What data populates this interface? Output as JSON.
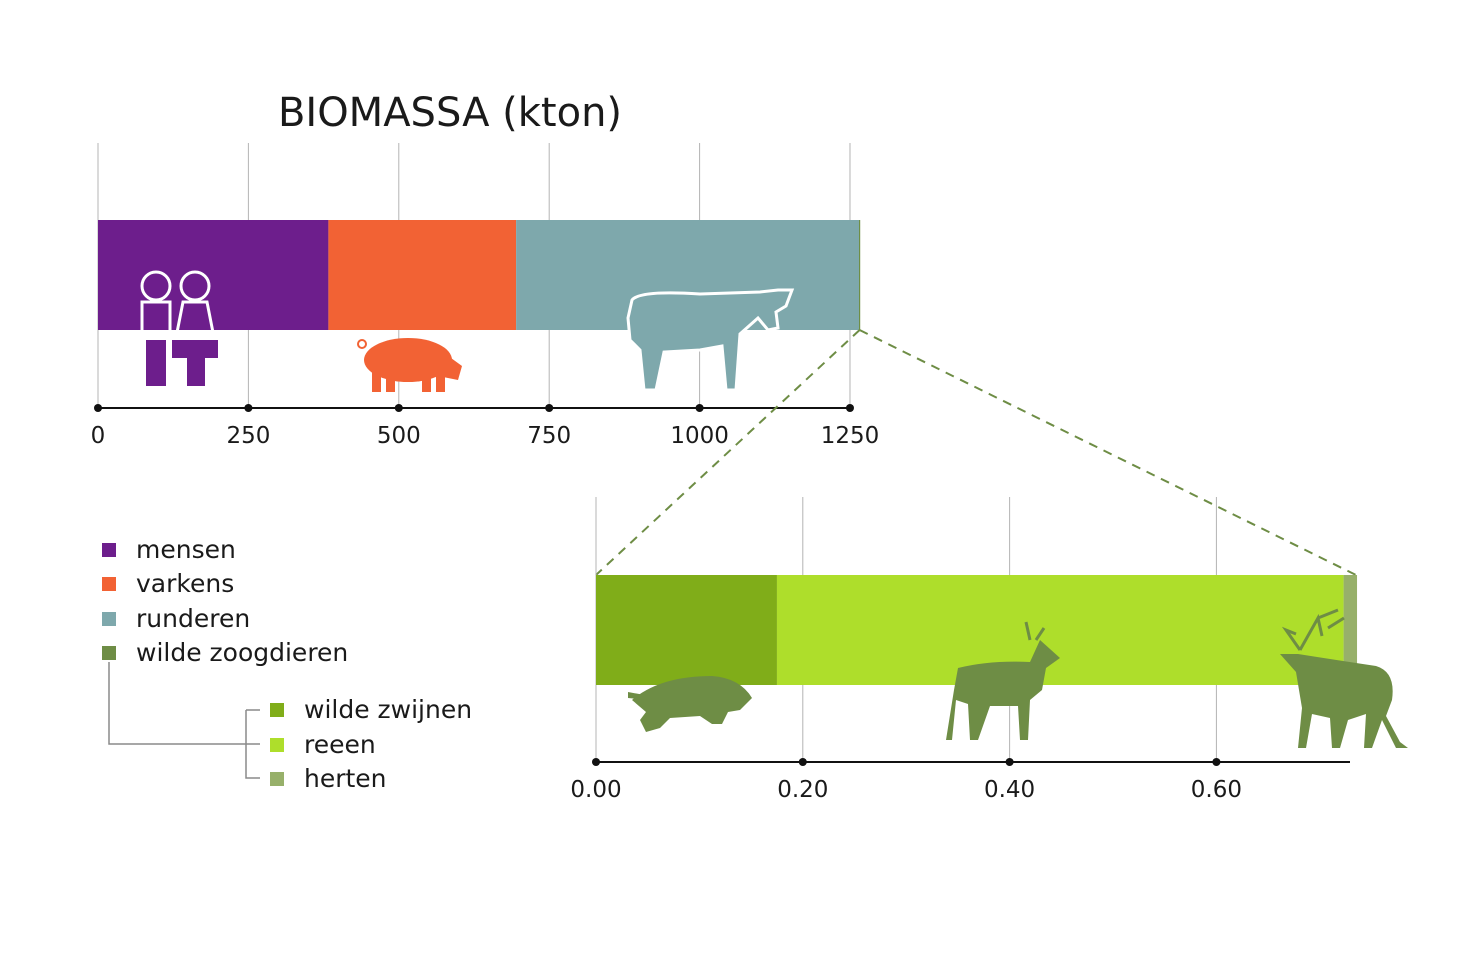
{
  "chart_data": [
    {
      "type": "bar",
      "orientation": "horizontal-stacked",
      "title": "BIOMASSA (kton)",
      "xlim": [
        0,
        1260
      ],
      "tick_labels": [
        "0",
        "250",
        "500",
        "750",
        "1000",
        "1250"
      ],
      "tick_values": [
        0,
        250,
        500,
        750,
        1000,
        1250
      ],
      "grid": true,
      "series": [
        {
          "name": "mensen",
          "value": 383,
          "color": "#6d1e8c",
          "icon": "people-icon"
        },
        {
          "name": "varkens",
          "value": 312,
          "color": "#f26234",
          "icon": "pig-icon"
        },
        {
          "name": "runderen",
          "value": 570,
          "color": "#7ea8ac",
          "icon": "cow-icon"
        },
        {
          "name": "wilde zoogdieren",
          "value": 2,
          "color": "#6e8d45"
        }
      ]
    },
    {
      "type": "bar",
      "orientation": "horizontal-stacked",
      "title": "",
      "xlim": [
        0,
        0.735
      ],
      "tick_labels": [
        "0.00",
        "0.20",
        "0.40",
        "0.60"
      ],
      "tick_values": [
        0.0,
        0.2,
        0.4,
        0.6
      ],
      "grid": true,
      "series": [
        {
          "name": "wilde zwijnen",
          "value": 0.175,
          "color": "#80ad19",
          "icon": "boar-icon"
        },
        {
          "name": "reeen",
          "value": 0.548,
          "color": "#aede2b",
          "icon": "roe-deer-icon"
        },
        {
          "name": "herten",
          "value": 0.013,
          "color": "#97b06a",
          "icon": "red-deer-icon"
        }
      ]
    }
  ],
  "legend": {
    "items": [
      {
        "label": "mensen",
        "color": "#6d1e8c"
      },
      {
        "label": "varkens",
        "color": "#f26234"
      },
      {
        "label": "runderen",
        "color": "#7ea8ac"
      },
      {
        "label": "wilde zoogdieren",
        "color": "#6e8d45"
      }
    ],
    "sub_items": [
      {
        "label": "wilde zwijnen",
        "color": "#80ad19"
      },
      {
        "label": "reeen",
        "color": "#aede2b"
      },
      {
        "label": "herten",
        "color": "#97b06a"
      }
    ]
  },
  "colors": {
    "axis": "#111111",
    "grid": "#b4b4b4",
    "zoom_line": "#6e8d45",
    "silhouette": "#6e8d45"
  }
}
